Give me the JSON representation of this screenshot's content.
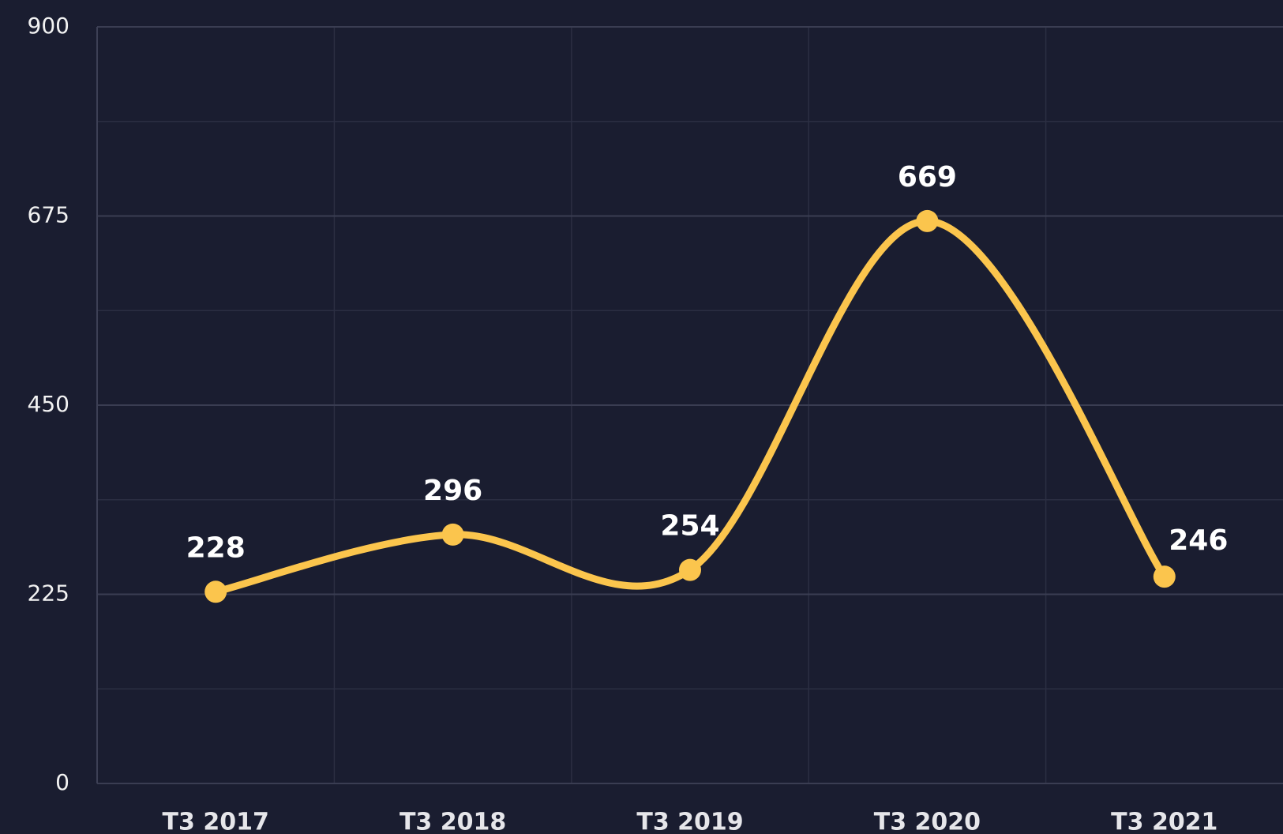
{
  "chart_data": {
    "type": "line",
    "categories": [
      "T3 2017",
      "T3 2018",
      "T3 2019",
      "T3 2020",
      "T3 2021"
    ],
    "values": [
      228,
      296,
      254,
      669,
      246
    ],
    "color": "#fbc54d",
    "ylim": [
      0,
      900
    ],
    "yticks": [
      0,
      225,
      450,
      675,
      900
    ],
    "grid": true
  }
}
